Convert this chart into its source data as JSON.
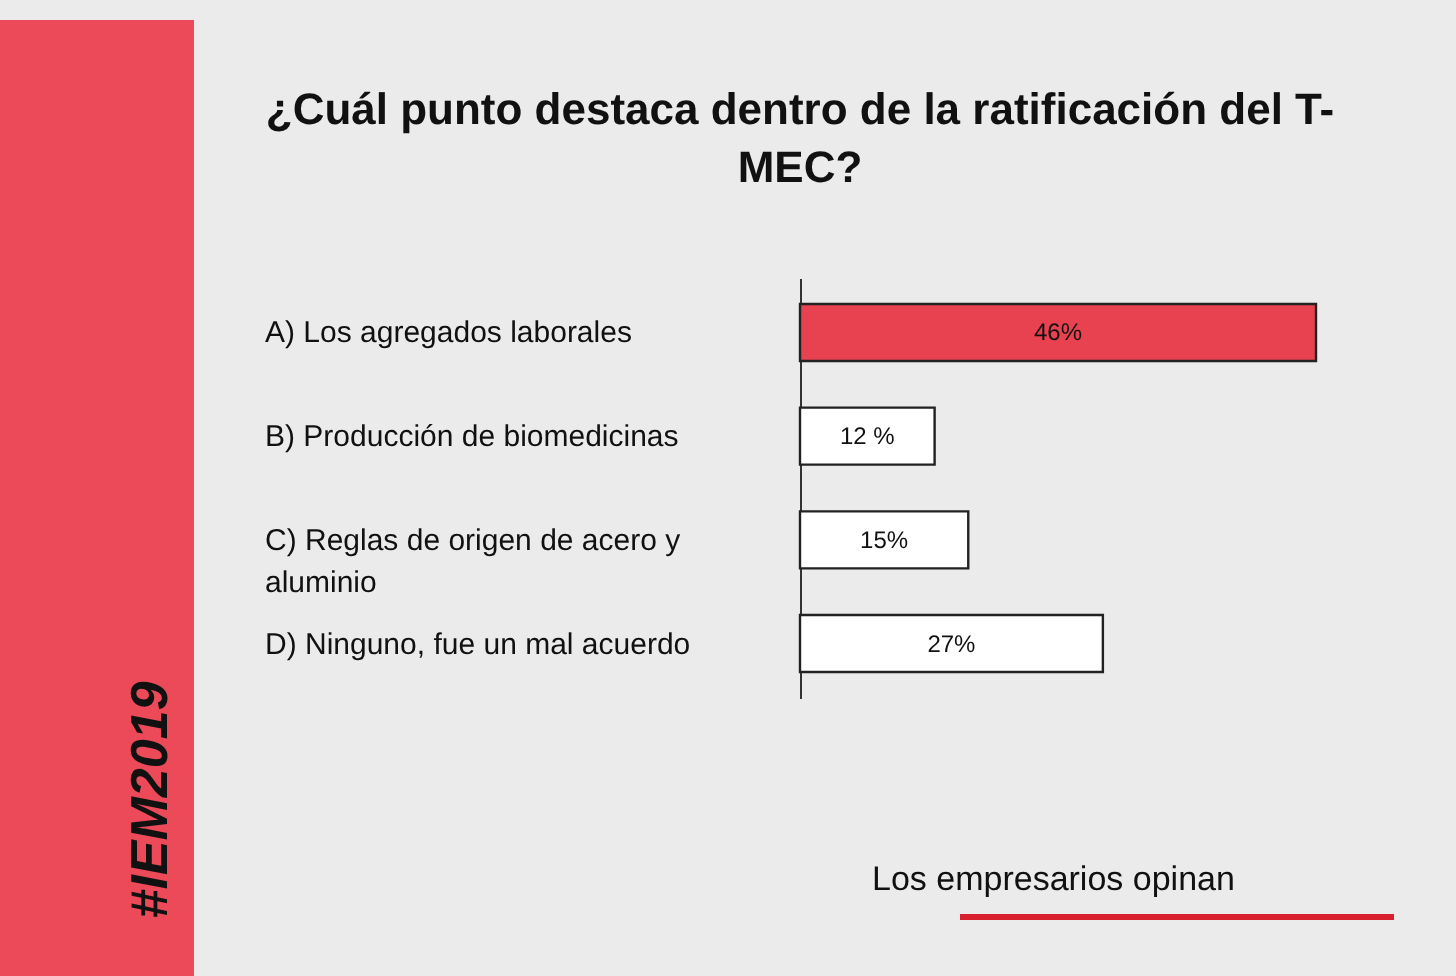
{
  "chart_data": {
    "type": "bar",
    "orientation": "horizontal",
    "title": "¿Cuál punto destaca dentro de la ratificación del T-MEC?",
    "categories": [
      "A) Los agregados laborales",
      "B) Producción de biomedicinas",
      "C) Reglas de origen de acero y aluminio",
      "D) Ninguno, fue un mal acuerdo"
    ],
    "values": [
      46,
      12,
      15,
      27
    ],
    "value_labels": [
      "46%",
      "12 %",
      "15%",
      "27%"
    ],
    "colors": [
      "#e8414f",
      "#ffffff",
      "#ffffff",
      "#ffffff"
    ],
    "annotations": [
      "#IEM2019",
      "Los empresarios opinan"
    ]
  }
}
